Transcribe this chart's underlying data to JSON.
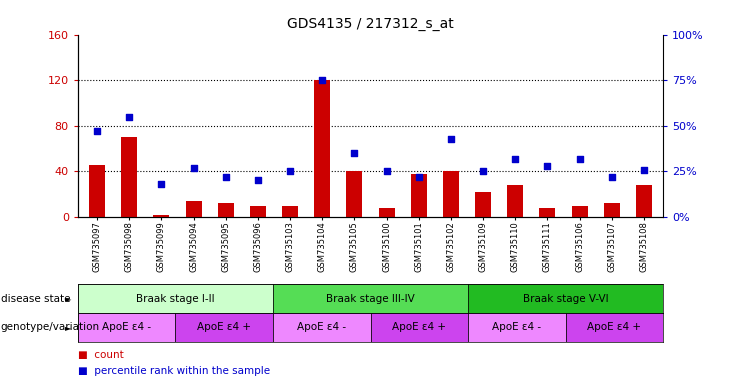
{
  "title": "GDS4135 / 217312_s_at",
  "samples": [
    "GSM735097",
    "GSM735098",
    "GSM735099",
    "GSM735094",
    "GSM735095",
    "GSM735096",
    "GSM735103",
    "GSM735104",
    "GSM735105",
    "GSM735100",
    "GSM735101",
    "GSM735102",
    "GSM735109",
    "GSM735110",
    "GSM735111",
    "GSM735106",
    "GSM735107",
    "GSM735108"
  ],
  "counts": [
    46,
    70,
    2,
    14,
    12,
    10,
    10,
    120,
    40,
    8,
    38,
    40,
    22,
    28,
    8,
    10,
    12,
    28
  ],
  "percentiles": [
    47,
    55,
    18,
    27,
    22,
    20,
    25,
    75,
    35,
    25,
    22,
    43,
    25,
    32,
    28,
    32,
    22,
    26
  ],
  "bar_color": "#cc0000",
  "scatter_color": "#0000cc",
  "ylim_left": [
    0,
    160
  ],
  "ylim_right": [
    0,
    100
  ],
  "yticks_left": [
    0,
    40,
    80,
    120,
    160
  ],
  "yticks_right": [
    0,
    25,
    50,
    75,
    100
  ],
  "ytick_labels_left": [
    "0",
    "40",
    "80",
    "120",
    "160"
  ],
  "ytick_labels_right": [
    "0%",
    "25%",
    "50%",
    "75%",
    "100%"
  ],
  "disease_state_label": "disease state",
  "genotype_label": "genotype/variation",
  "disease_groups": [
    {
      "label": "Braak stage I-II",
      "start": 0,
      "end": 6,
      "color": "#ccffcc"
    },
    {
      "label": "Braak stage III-IV",
      "start": 6,
      "end": 12,
      "color": "#55dd55"
    },
    {
      "label": "Braak stage V-VI",
      "start": 12,
      "end": 18,
      "color": "#22bb22"
    }
  ],
  "genotype_groups": [
    {
      "label": "ApoE ε4 -",
      "start": 0,
      "end": 3,
      "color": "#ee88ff"
    },
    {
      "label": "ApoE ε4 +",
      "start": 3,
      "end": 6,
      "color": "#cc44ee"
    },
    {
      "label": "ApoE ε4 -",
      "start": 6,
      "end": 9,
      "color": "#ee88ff"
    },
    {
      "label": "ApoE ε4 +",
      "start": 9,
      "end": 12,
      "color": "#cc44ee"
    },
    {
      "label": "ApoE ε4 -",
      "start": 12,
      "end": 15,
      "color": "#ee88ff"
    },
    {
      "label": "ApoE ε4 +",
      "start": 15,
      "end": 18,
      "color": "#cc44ee"
    }
  ],
  "legend_count_color": "#cc0000",
  "legend_pct_color": "#0000cc",
  "bg_color": "#ffffff",
  "left_axis_color": "#cc0000",
  "right_axis_color": "#0000cc",
  "gridline_yticks": [
    40,
    80,
    120
  ]
}
